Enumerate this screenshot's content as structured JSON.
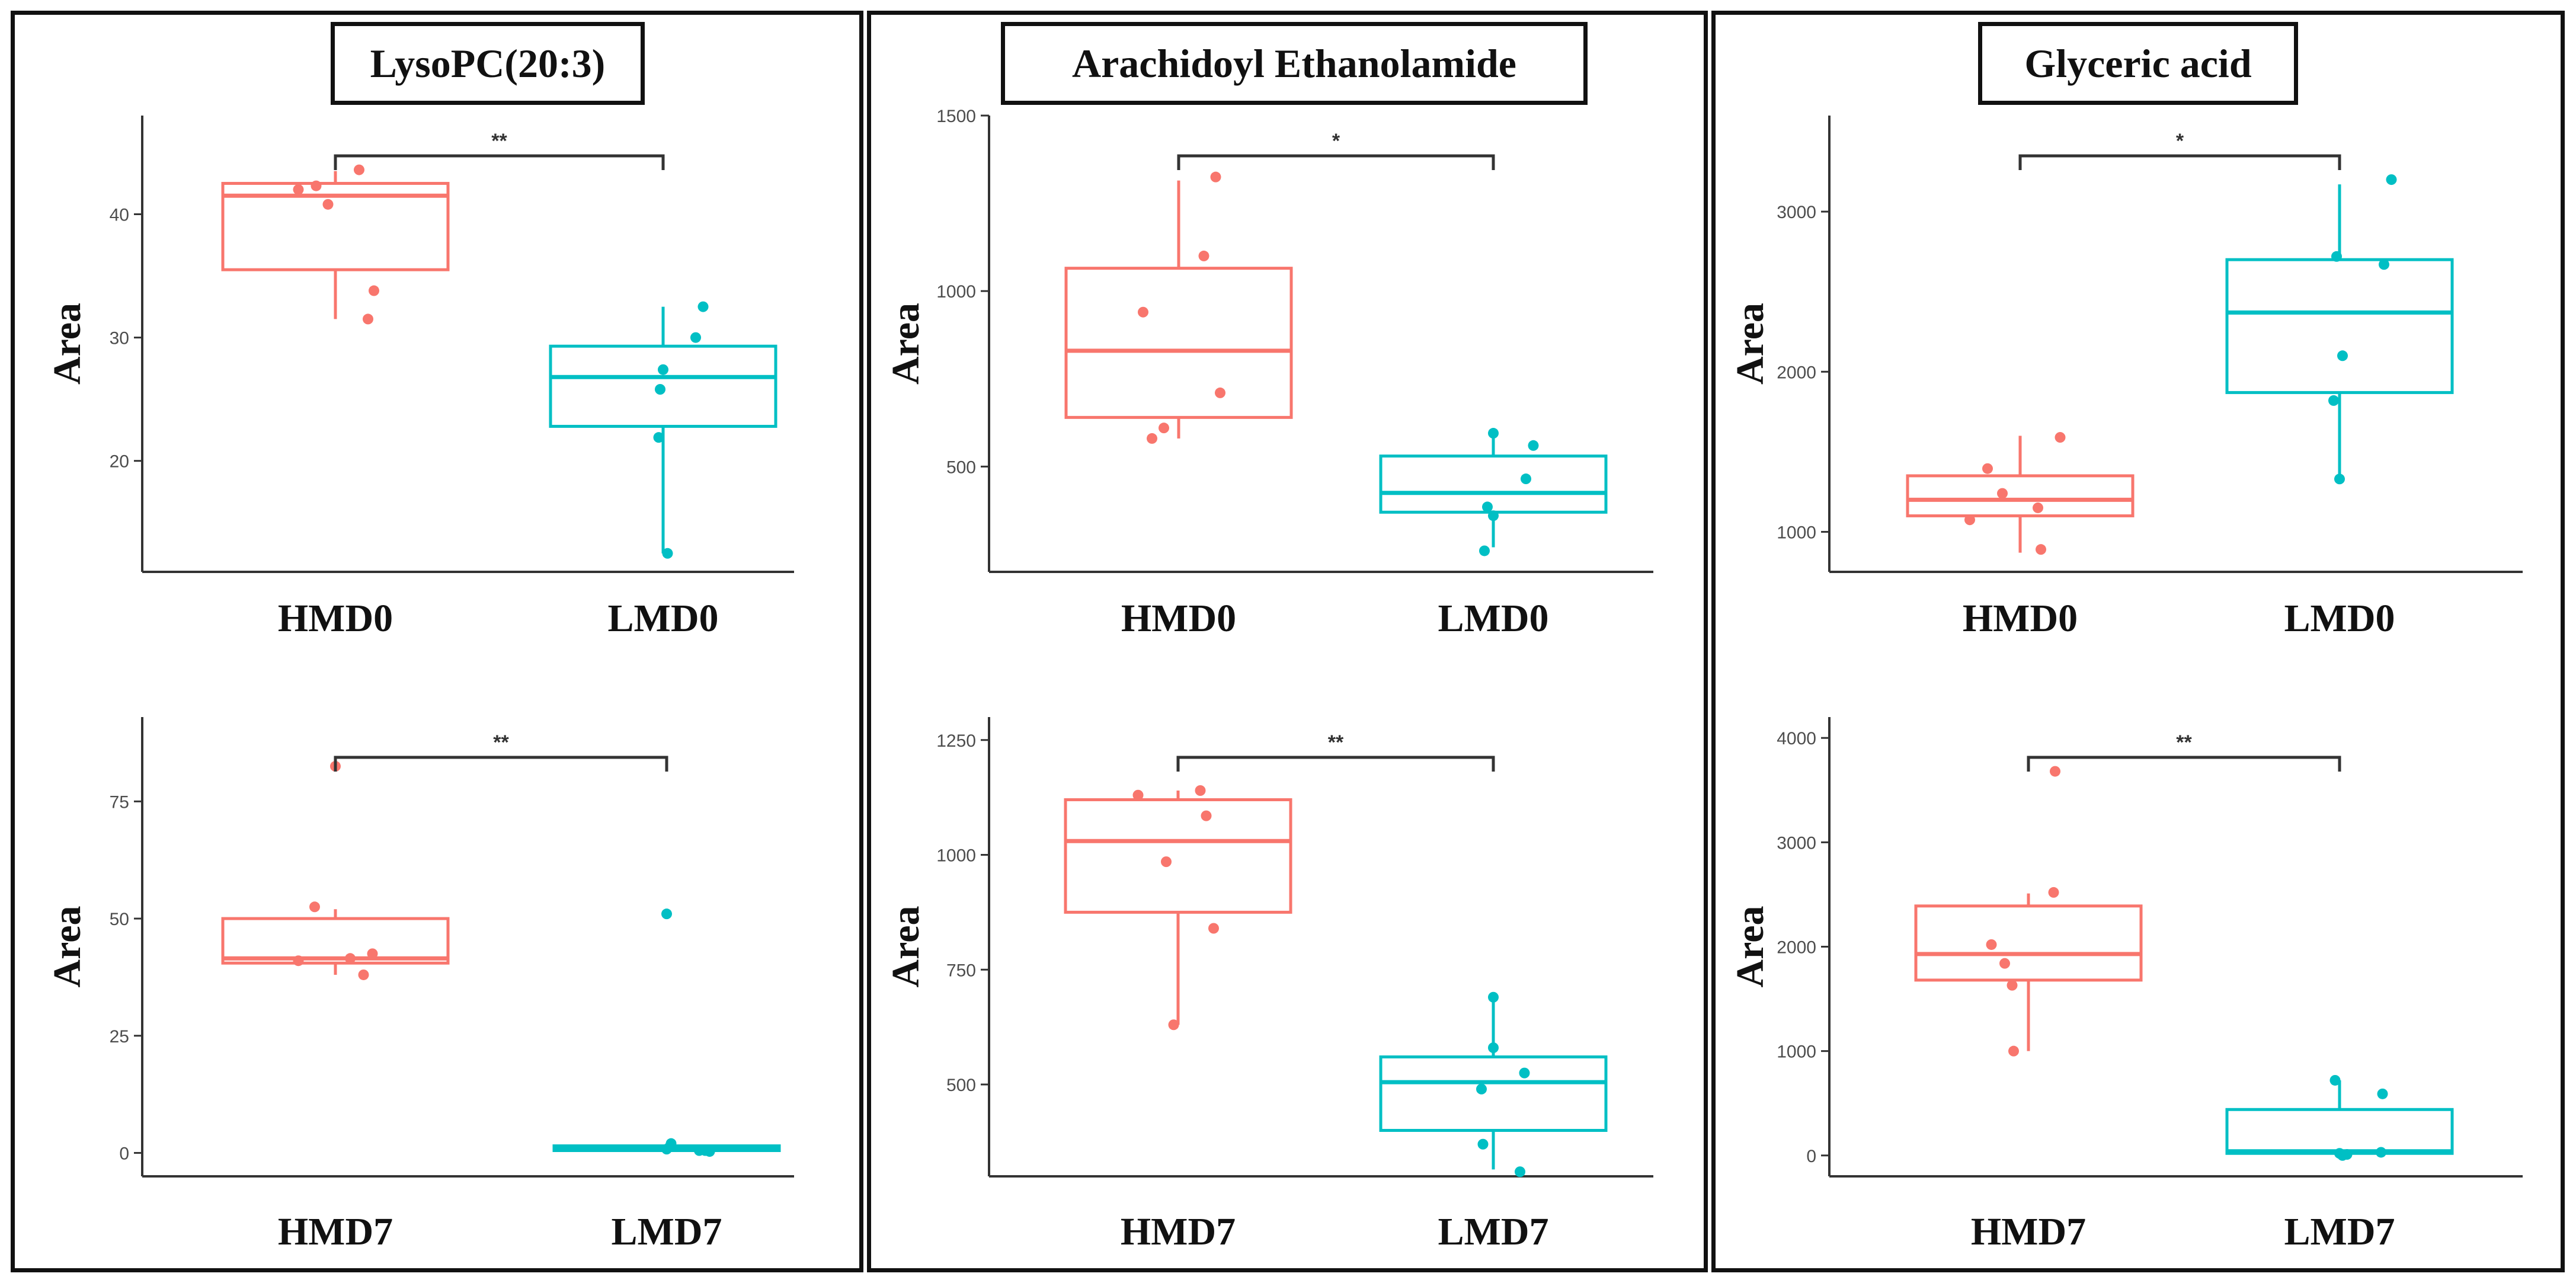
{
  "colors": {
    "hm": "#F8766D",
    "lm": "#00BFC4",
    "axis": "#333333",
    "bracket": "#333333"
  },
  "columns": [
    {
      "title": "LysoPC(20:3)"
    },
    {
      "title": "Arachidoyl Ethanolamide"
    },
    {
      "title": "Glyceric acid"
    }
  ],
  "chart_data": [
    {
      "type": "box",
      "compound": "LysoPC(20:3)",
      "ylabel": "Area",
      "ylim": [
        11,
        48
      ],
      "yticks": [
        20,
        30,
        40
      ],
      "significance": "**",
      "groups": [
        {
          "name": "HMD0",
          "color_key": "hm",
          "whisker_low": 31.5,
          "q1": 35.5,
          "median": 41.5,
          "q3": 42.5,
          "whisker_high": 43.5,
          "points": [
            [
              -0.25,
              42.0
            ],
            [
              -0.13,
              42.3
            ],
            [
              -0.05,
              40.8
            ],
            [
              0.16,
              43.6
            ],
            [
              0.26,
              33.8
            ],
            [
              0.22,
              31.5
            ]
          ]
        },
        {
          "name": "LMD0",
          "color_key": "lm",
          "whisker_low": 12.5,
          "q1": 22.8,
          "median": 26.8,
          "q3": 29.3,
          "whisker_high": 32.5,
          "points": [
            [
              -0.03,
              21.9
            ],
            [
              -0.02,
              25.8
            ],
            [
              0.0,
              27.4
            ],
            [
              0.22,
              30.0
            ],
            [
              0.27,
              32.5
            ],
            [
              0.03,
              12.5
            ]
          ]
        }
      ]
    },
    {
      "type": "box",
      "compound": "Arachidoyl Ethanolamide",
      "ylabel": "Area",
      "ylim": [
        200,
        1500
      ],
      "yticks": [
        500,
        1000,
        1500
      ],
      "significance": "*",
      "groups": [
        {
          "name": "HMD0",
          "color_key": "hm",
          "whisker_low": 580,
          "q1": 640,
          "median": 830,
          "q3": 1065,
          "whisker_high": 1315,
          "points": [
            [
              -0.24,
              940
            ],
            [
              -0.18,
              580
            ],
            [
              -0.1,
              610
            ],
            [
              0.17,
              1100
            ],
            [
              0.25,
              1325
            ],
            [
              0.28,
              710
            ]
          ]
        },
        {
          "name": "LMD0",
          "color_key": "lm",
          "whisker_low": 270,
          "q1": 370,
          "median": 425,
          "q3": 530,
          "whisker_high": 600,
          "points": [
            [
              -0.04,
              385
            ],
            [
              0.0,
              360
            ],
            [
              0.0,
              595
            ],
            [
              0.22,
              465
            ],
            [
              0.27,
              560
            ],
            [
              -0.06,
              260
            ]
          ]
        }
      ]
    },
    {
      "type": "box",
      "compound": "Glyceric acid",
      "ylabel": "Area",
      "ylim": [
        750,
        3600
      ],
      "yticks": [
        1000,
        2000,
        3000
      ],
      "significance": "*",
      "groups": [
        {
          "name": "HMD0",
          "color_key": "hm",
          "whisker_low": 870,
          "q1": 1100,
          "median": 1200,
          "q3": 1350,
          "whisker_high": 1600,
          "points": [
            [
              -0.34,
              1075
            ],
            [
              -0.22,
              1395
            ],
            [
              -0.12,
              1240
            ],
            [
              0.12,
              1150
            ],
            [
              0.14,
              890
            ],
            [
              0.27,
              1590
            ]
          ]
        },
        {
          "name": "LMD0",
          "color_key": "lm",
          "whisker_low": 1310,
          "q1": 1870,
          "median": 2370,
          "q3": 2700,
          "whisker_high": 3170,
          "points": [
            [
              -0.02,
              2720
            ],
            [
              -0.04,
              1820
            ],
            [
              0.0,
              1330
            ],
            [
              0.02,
              2100
            ],
            [
              0.3,
              2670
            ],
            [
              0.35,
              3200
            ]
          ]
        }
      ]
    },
    {
      "type": "box",
      "compound": "LysoPC(20:3)",
      "ylabel": "Area",
      "ylim": [
        -5,
        93
      ],
      "yticks": [
        0,
        25,
        50,
        75
      ],
      "significance": "**",
      "groups": [
        {
          "name": "HMD7",
          "color_key": "hm",
          "whisker_low": 38,
          "q1": 40.5,
          "median": 41.5,
          "q3": 50,
          "whisker_high": 52,
          "points": [
            [
              -0.25,
              41.0
            ],
            [
              -0.14,
              52.5
            ],
            [
              0.0,
              82.5
            ],
            [
              0.1,
              41.5
            ],
            [
              0.19,
              38.0
            ],
            [
              0.25,
              42.5
            ]
          ]
        },
        {
          "name": "LMD7",
          "color_key": "lm",
          "whisker_low": 0.2,
          "q1": 0.5,
          "median": 1.0,
          "q3": 1.5,
          "whisker_high": 2.0,
          "points": [
            [
              0.0,
              51.0
            ],
            [
              0.03,
              2.0
            ],
            [
              0.0,
              0.8
            ],
            [
              0.22,
              0.5
            ],
            [
              0.26,
              0.5
            ],
            [
              0.29,
              0.3
            ]
          ]
        }
      ]
    },
    {
      "type": "box",
      "compound": "Arachidoyl Ethanolamide",
      "ylabel": "Area",
      "ylim": [
        300,
        1300
      ],
      "yticks": [
        500,
        750,
        1000,
        1250
      ],
      "significance": "**",
      "groups": [
        {
          "name": "HMD7",
          "color_key": "hm",
          "whisker_low": 630,
          "q1": 875,
          "median": 1030,
          "q3": 1120,
          "whisker_high": 1140,
          "points": [
            [
              -0.27,
              1130
            ],
            [
              -0.08,
              985
            ],
            [
              -0.03,
              630
            ],
            [
              0.15,
              1140
            ],
            [
              0.19,
              1085
            ],
            [
              0.24,
              840
            ]
          ]
        },
        {
          "name": "LMD7",
          "color_key": "lm",
          "whisker_low": 315,
          "q1": 400,
          "median": 505,
          "q3": 560,
          "whisker_high": 690,
          "points": [
            [
              -0.08,
              490
            ],
            [
              -0.07,
              370
            ],
            [
              0.0,
              690
            ],
            [
              0.0,
              580
            ],
            [
              0.21,
              525
            ],
            [
              0.18,
              310
            ]
          ]
        }
      ]
    },
    {
      "type": "box",
      "compound": "Glyceric acid",
      "ylabel": "Area",
      "ylim": [
        -200,
        4200
      ],
      "yticks": [
        0,
        1000,
        2000,
        3000,
        4000
      ],
      "significance": "**",
      "groups": [
        {
          "name": "HMD7",
          "color_key": "hm",
          "whisker_low": 1000,
          "q1": 1680,
          "median": 1930,
          "q3": 2390,
          "whisker_high": 2510,
          "points": [
            [
              -0.25,
              2020
            ],
            [
              -0.16,
              1840
            ],
            [
              -0.11,
              1630
            ],
            [
              -0.1,
              1000
            ],
            [
              0.17,
              2520
            ],
            [
              0.18,
              3680
            ]
          ]
        },
        {
          "name": "LMD7",
          "color_key": "lm",
          "whisker_low": 0,
          "q1": 20,
          "median": 40,
          "q3": 440,
          "whisker_high": 720,
          "points": [
            [
              -0.03,
              720
            ],
            [
              0.0,
              20
            ],
            [
              0.02,
              0
            ],
            [
              0.05,
              10
            ],
            [
              0.28,
              30
            ],
            [
              0.29,
              590
            ]
          ]
        }
      ]
    }
  ]
}
